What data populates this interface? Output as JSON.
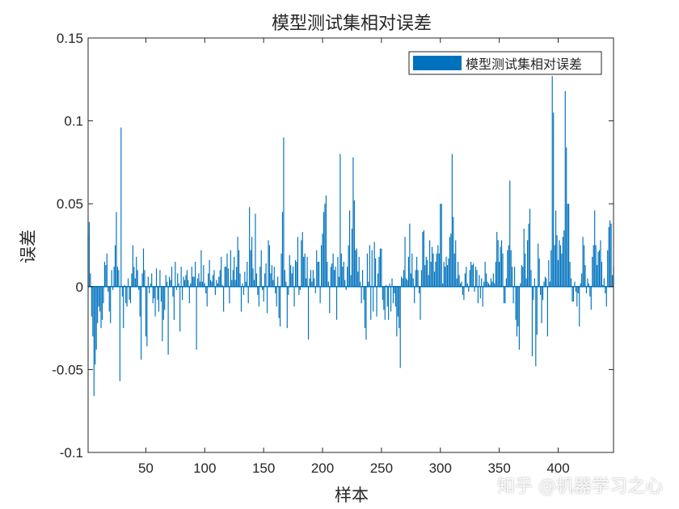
{
  "chart_data": {
    "type": "bar",
    "title": "模型测试集相对误差",
    "xlabel": "样本",
    "ylabel": "误差",
    "legend": [
      "模型测试集相对误差"
    ],
    "legend_placement": "top-right",
    "xlim": [
      1,
      447
    ],
    "ylim": [
      -0.1,
      0.15
    ],
    "xticks": [
      50,
      100,
      150,
      200,
      250,
      300,
      350,
      400
    ],
    "xtick_labels": [
      "50",
      "100",
      "150",
      "200",
      "250",
      "300",
      "350",
      "400"
    ],
    "yticks": [
      0.15,
      0.1,
      0.05,
      0,
      -0.05,
      -0.1
    ],
    "ytick_labels": [
      "0.15",
      "0.1",
      "0.05",
      "0",
      "-0.05",
      "-0.1"
    ],
    "grid": false,
    "bar_color": "#0072BD",
    "series": [
      {
        "name": "模型测试集相对误差",
        "values": [
          0.032,
          0.039,
          0.008,
          -0.018,
          -0.03,
          -0.066,
          -0.047,
          -0.038,
          -0.022,
          -0.012,
          -0.015,
          -0.025,
          -0.02,
          -0.01,
          0.015,
          0.013,
          0.02,
          -0.003,
          -0.015,
          -0.022,
          0.01,
          -0.002,
          0.012,
          0.025,
          0.045,
          0.012,
          0.01,
          -0.057,
          0.096,
          -0.006,
          -0.025,
          0.001,
          -0.01,
          -0.012,
          0.005,
          -0.008,
          -0.01,
          0.008,
          0.025,
          0.012,
          0.005,
          0.018,
          0.01,
          -0.002,
          -0.018,
          -0.044,
          0.008,
          0.023,
          0.01,
          -0.03,
          -0.036,
          0.006,
          -0.004,
          0.002,
          0.008,
          -0.01,
          -0.007,
          -0.018,
          0.011,
          -0.008,
          -0.015,
          0.01,
          -0.009,
          -0.033,
          -0.02,
          -0.014,
          0.007,
          0.003,
          -0.041,
          0.006,
          0.004,
          0.012,
          -0.006,
          -0.02,
          0.015,
          -0.002,
          0.008,
          0.002,
          -0.027,
          0.012,
          -0.008,
          0.006,
          0.004,
          0.007,
          0.01,
          0.004,
          -0.01,
          0.002,
          0.012,
          0.006,
          0.006,
          0.015,
          -0.038,
          0.005,
          0.008,
          0.003,
          0.022,
          0.003,
          0.013,
          0.002,
          -0.004,
          -0.012,
          0.008,
          0.016,
          0.004,
          0.003,
          0.007,
          0.01,
          -0.005,
          0.004,
          0.002,
          0.006,
          0.01,
          0.018,
          0.001,
          -0.015,
          0.012,
          0.012,
          0.02,
          0.011,
          -0.01,
          0.022,
          0.004,
          0.01,
          0.018,
          0.004,
          0.012,
          0.03,
          0.022,
          0.008,
          -0.015,
          0.002,
          -0.005,
          0.009,
          0.003,
          0.015,
          -0.01,
          0.048,
          0.022,
          0.03,
          0.011,
          0.004,
          0.044,
          0.008,
          -0.005,
          -0.012,
          0.012,
          0.022,
          -0.002,
          -0.009,
          0.008,
          0.014,
          -0.016,
          0.028,
          0.025,
          0.008,
          0.013,
          0.004,
          0.012,
          -0.004,
          -0.012,
          0.006,
          -0.019,
          -0.024,
          0.02,
          0.045,
          0.09,
          0.01,
          0.003,
          -0.025,
          -0.005,
          0.019,
          0.013,
          0.008,
          0.012,
          -0.012,
          0.016,
          0.015,
          0.03,
          -0.005,
          -0.002,
          0.028,
          0.033,
          0.018,
          0.02,
          0.005,
          0.018,
          -0.032,
          0.005,
          0.01,
          0.003,
          0.01,
          0.005,
          -0.004,
          0.022,
          0.015,
          0.015,
          -0.01,
          0.025,
          0.032,
          0.045,
          0.05,
          0.055,
          0.015,
          0.003,
          -0.016,
          0.012,
          0.014,
          0.02,
          0.01,
          0.012,
          -0.02,
          0.018,
          0.006,
          0.08,
          0.02,
          0.012,
          0.015,
          0.004,
          -0.002,
          0.012,
          0.025,
          0.046,
          0.007,
          0.035,
          0.078,
          0.052,
          0.022,
          0.023,
          0.009,
          0.018,
          0.003,
          -0.01,
          0.01,
          -0.008,
          -0.025,
          -0.032,
          0.02,
          0.003,
          0.025,
          -0.02,
          0.022,
          -0.015,
          0.027,
          0.017,
          -0.018,
          0.008,
          0.018,
          0.023,
          0.023,
          -0.008,
          -0.014,
          -0.02,
          0.001,
          -0.012,
          -0.02,
          0.002,
          -0.015,
          0.005,
          -0.01,
          -0.004,
          -0.012,
          -0.03,
          -0.018,
          -0.025,
          -0.049,
          0.006,
          0.005,
          0.01,
          0.03,
          0.005,
          0.004,
          0.018,
          0.038,
          0.008,
          0.02,
          0.005,
          -0.01,
          0.01,
          0.018,
          0.01,
          -0.004,
          -0.02,
          0.01,
          0.033,
          0.034,
          0.013,
          0.018,
          0.016,
          0.007,
          0.028,
          0.015,
          0.024,
          0.02,
          0.009,
          0.015,
          0.02,
          0.025,
          0.02,
          0.05,
          0.05,
          0.002,
          0.015,
          0.012,
          0.018,
          0.013,
          0.017,
          0.03,
          0.032,
          0.08,
          0.042,
          0.02,
          0.028,
          0.005,
          0.015,
          0.007,
          0.002,
          0.003,
          -0.005,
          -0.008,
          0.008,
          0.012,
          0.002,
          -0.003,
          0.01,
          0.015,
          0.013,
          0.014,
          -0.003,
          0.012,
          0.01,
          -0.01,
          0.007,
          -0.007,
          0.005,
          -0.012,
          0.003,
          0.015,
          0.008,
          0.003,
          0.002,
          0.001,
          0.005,
          0.003,
          0.008,
          0.002,
          0.015,
          0.033,
          0.028,
          0.015,
          0.024,
          0.028,
          0.02,
          -0.01,
          -0.01,
          0.005,
          0.022,
          0.025,
          0.064,
          0.022,
          0.012,
          -0.01,
          0.012,
          -0.02,
          -0.03,
          -0.024,
          -0.038,
          0.002,
          0.013,
          0.012,
          0.035,
          0.02,
          0.005,
          0.028,
          0.038,
          0.047,
          0.01,
          -0.042,
          -0.008,
          0.005,
          -0.048,
          -0.029,
          0.026,
          0.017,
          -0.005,
          -0.022,
          -0.008,
          0.003,
          0.006,
          0.005,
          -0.03,
          0.016,
          0.003,
          0.022,
          0.127,
          0.105,
          0.025,
          0.046,
          0.031,
          0.016,
          0.028,
          0.025,
          0.02,
          0.03,
          0.034,
          0.118,
          0.084,
          0.05,
          0.05,
          0.015,
          0.005,
          -0.009,
          -0.009,
          0.003,
          -0.003,
          -0.012,
          -0.004,
          -0.024,
          0.002,
          0.008,
          0.03,
          0.025,
          0.013,
          -0.004,
          0.005,
          0.002,
          -0.006,
          -0.014,
          0.018,
          0.025,
          0.046,
          0.025,
          0.013,
          0.021,
          0.022,
          0.028,
          0.015,
          0.001,
          0.005,
          -0.004,
          -0.012,
          0.022,
          0.036,
          0.04,
          0.038,
          0.007,
          0.012
        ]
      }
    ]
  },
  "watermark": "知乎 @机器学习之心"
}
